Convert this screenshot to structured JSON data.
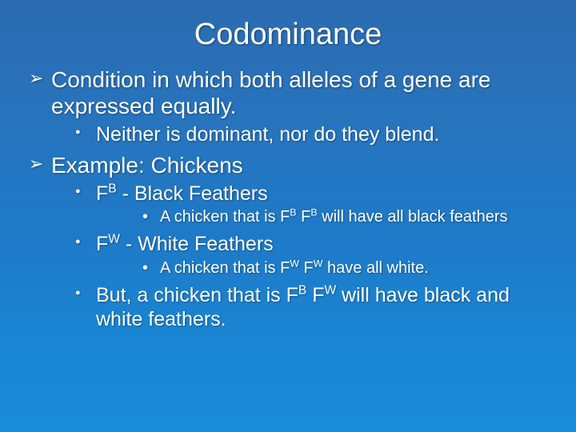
{
  "slide": {
    "background_gradient": [
      "#2b6bb0",
      "#1a8cd8"
    ],
    "text_color": "#ffffff",
    "title": "Codominance",
    "title_fontsize": 38,
    "bullets": {
      "b1": {
        "text": "Condition in which both alleles of a gene are expressed equally.",
        "sub": {
          "s1": "Neither is dominant, nor do they blend."
        }
      },
      "b2": {
        "text": "Example: Chickens",
        "sub": {
          "s1": {
            "prefix": "F",
            "sup1": "B",
            "rest": " - Black Feathers",
            "sub": {
              "p1": "A chicken that is F",
              "p1s": "B",
              "p2": " F",
              "p2s": "B",
              "p3": " will have all black feathers"
            }
          },
          "s2": {
            "prefix": "F",
            "sup1": "W",
            "rest": " - White Feathers",
            "sub": {
              "p1": "A chicken that is F",
              "p1s": "W",
              "p2": " F",
              "p2s": "W",
              "p3": " have all white."
            }
          },
          "s3": {
            "p1": "But, a chicken that is  F",
            "p1s": "B",
            "p2": " F",
            "p2s": "W",
            "p3": " will have black and white feathers."
          }
        }
      }
    }
  }
}
